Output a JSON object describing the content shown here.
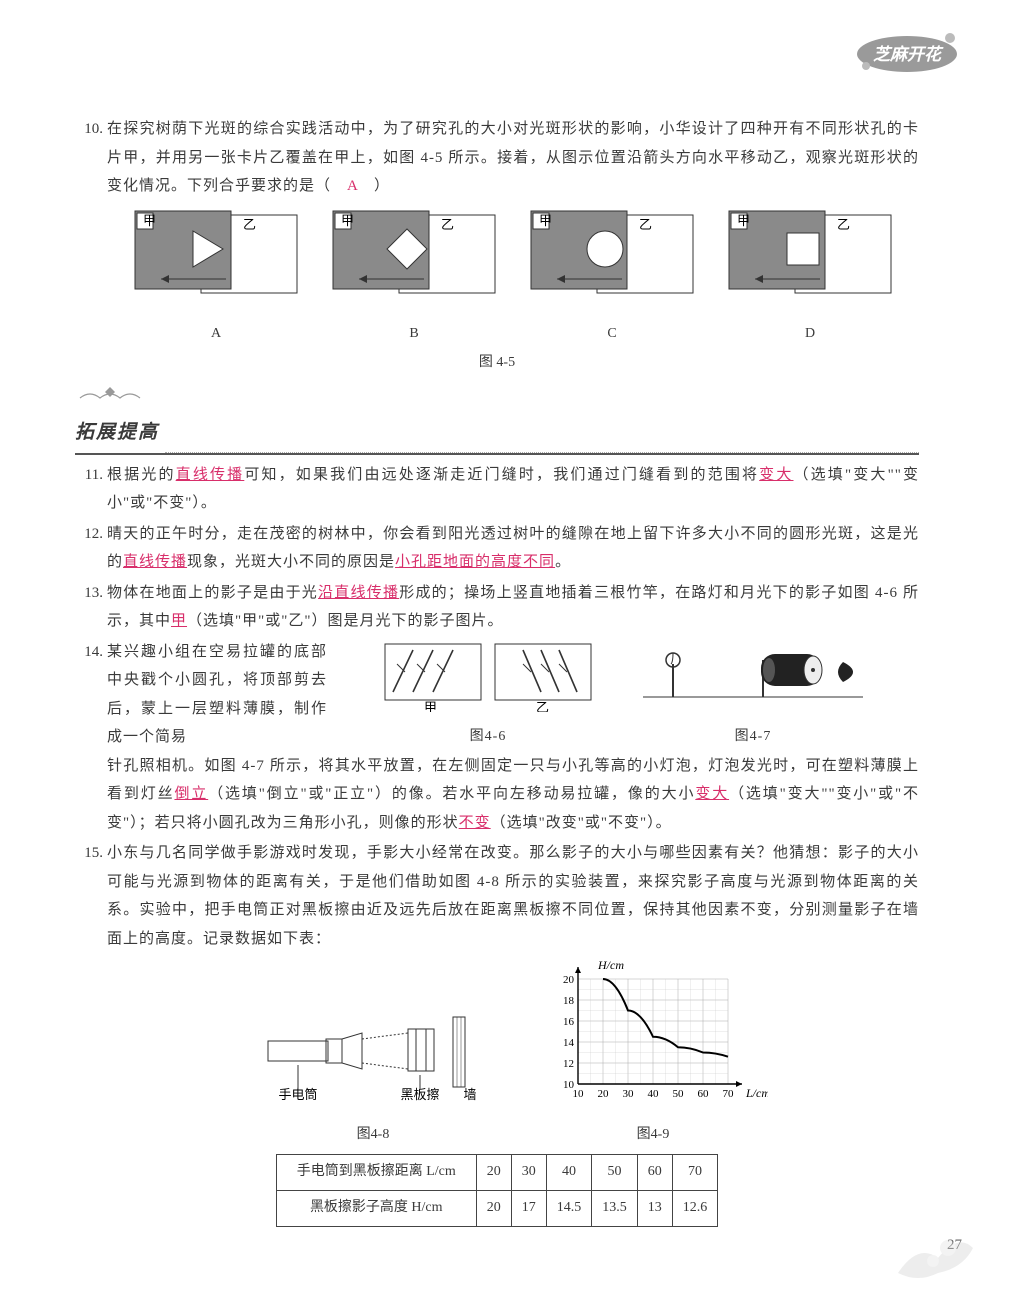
{
  "logo_text": "芝麻开花",
  "q10": {
    "num": "10.",
    "text1": "在探究树荫下光斑的综合实践活动中，为了研究孔的大小对光斑形状的影响，小华设计了四种开有不同形状孔的卡片甲，并用另一张卡片乙覆盖在甲上，如图 4-5 所示。接着，从图示位置沿箭头方向水平移动乙，观察光斑形状的变化情况。下列合乎要求的是（　",
    "ans": "A",
    "text2": "　）",
    "labels": [
      "A",
      "B",
      "C",
      "D"
    ],
    "card_jia": "甲",
    "card_yi": "乙",
    "caption": "图 4-5"
  },
  "section": {
    "title": "拓展提高"
  },
  "q11": {
    "num": "11.",
    "t1": "根据光的",
    "a1": "直线传播",
    "t2": "可知，如果我们由远处逐渐走近门缝时，我们通过门缝看到的范围将",
    "a2": "变大",
    "t3": "（选填\"变大\"\"变小\"或\"不变\"）。"
  },
  "q12": {
    "num": "12.",
    "t1": "晴天的正午时分，走在茂密的树林中，你会看到阳光透过树叶的缝隙在地上留下许多大小不同的圆形光斑，这是光的",
    "a1": "直线传播",
    "t2": "现象，光斑大小不同的原因是",
    "a2": "小孔距地面的高度不同",
    "t3": "。"
  },
  "q13": {
    "num": "13.",
    "t1": "物体在地面上的影子是由于光",
    "a1": "沿直线传播",
    "t2": "形成的；操场上竖直地插着三根竹竿，在路灯和月光下的影子如图 4-6 所示，其中",
    "a2": "甲",
    "t3": "（选填\"甲\"或\"乙\"）图是月光下的影子图片。"
  },
  "q14": {
    "num": "14.",
    "left1": "某兴趣小组在空易拉罐的底部中央戳个小圆孔，将顶部剪去后，蒙上一层塑料薄膜，制作成一个简易",
    "fig46_jia": "甲",
    "fig46_yi": "乙",
    "fig46_cap": "图4-6",
    "fig47_cap": "图4-7",
    "t2a": "针孔照相机。如图 4-7 所示，将其水平放置，在左侧固定一只与小孔等高的小灯泡，灯泡发光时，可在塑料薄膜上看到灯丝",
    "a1": "倒立",
    "t2b": "（选填\"倒立\"或\"正立\"）的像。若水平向左移动易拉罐，像的大小",
    "a2": "变大",
    "t2c": "（选填\"变大\"\"变小\"或\"不变\"）；若只将小圆孔改为三角形小孔，则像的形状",
    "a3": "不变",
    "t2d": "（选填\"改变\"或\"不变\"）。"
  },
  "q15": {
    "num": "15.",
    "t1": "小东与几名同学做手影游戏时发现，手影大小经常在改变。那么影子的大小与哪些因素有关？他猜想：影子的大小可能与光源到物体的距离有关，于是他们借助如图 4-8 所示的实验装置，来探究影子高度与光源到物体距离的关系。实验中，把手电筒正对黑板擦由近及远先后放在距离黑板擦不同位置，保持其他因素不变，分别测量影子在墙面上的高度。记录数据如下表：",
    "fig8_labels": {
      "torch": "手电筒",
      "eraser": "黑板擦",
      "wall": "墙"
    },
    "fig8_cap": "图4-8",
    "fig9": {
      "ylabel": "H/cm",
      "xlabel": "L/cm",
      "yticks": [
        "10",
        "12",
        "14",
        "16",
        "18",
        "20"
      ],
      "xticks": [
        "10",
        "20",
        "30",
        "40",
        "50",
        "60",
        "70"
      ],
      "points": [
        [
          20,
          20
        ],
        [
          30,
          17
        ],
        [
          40,
          14.5
        ],
        [
          50,
          13.5
        ],
        [
          60,
          13
        ],
        [
          70,
          12.6
        ]
      ],
      "caption": "图4-9"
    },
    "table": {
      "h1": "手电筒到黑板擦距离 L/cm",
      "h2": "黑板擦影子高度 H/cm",
      "L": [
        "20",
        "30",
        "40",
        "50",
        "60",
        "70"
      ],
      "H": [
        "20",
        "17",
        "14.5",
        "13.5",
        "13",
        "12.6"
      ]
    }
  },
  "page_num": "27",
  "colors": {
    "text": "#3a3a3a",
    "answer": "#d82e6a",
    "shape_fill": "#8a8a8a",
    "shape_stroke": "#333",
    "grid": "#888"
  }
}
